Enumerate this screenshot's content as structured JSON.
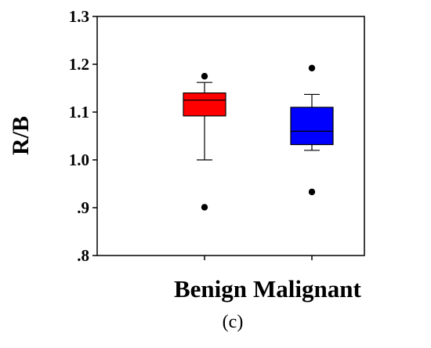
{
  "chart_data": {
    "type": "box",
    "ylabel": "R/B",
    "xlabel": "",
    "ylim": [
      0.8,
      1.3
    ],
    "yticks": [
      0.8,
      0.9,
      1.0,
      1.1,
      1.2,
      1.3
    ],
    "ytick_labels": [
      ".8",
      ".9",
      "1.0",
      "1.1",
      "1.2",
      "1.3"
    ],
    "categories": [
      "Benign",
      "Malignant"
    ],
    "caption": "(c)",
    "series": [
      {
        "category": "Benign",
        "color": "#ff0000",
        "whisker_low": 1.0,
        "q1": 1.092,
        "median": 1.125,
        "q3": 1.14,
        "whisker_high": 1.162,
        "outliers": [
          1.175,
          0.901
        ]
      },
      {
        "category": "Malignant",
        "color": "#0000ff",
        "whisker_low": 1.02,
        "q1": 1.032,
        "median": 1.06,
        "q3": 1.11,
        "whisker_high": 1.137,
        "outliers": [
          1.192,
          0.933
        ]
      }
    ]
  }
}
